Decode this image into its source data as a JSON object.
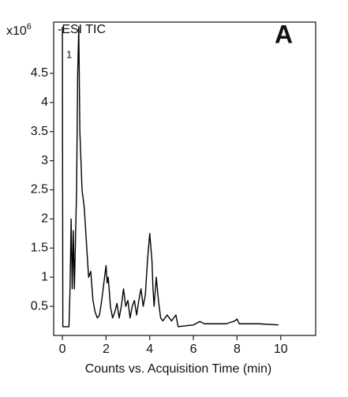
{
  "chart_data": {
    "type": "line",
    "x_label": "Counts vs. Acquisition Time (min)",
    "y_scale_label": {
      "base": "x10",
      "exponent": "6"
    },
    "annotations": [
      "-ESI TIC",
      "A",
      "1"
    ],
    "color": "#000000",
    "x": [
      0.0,
      0.02,
      0.3,
      0.35,
      0.4,
      0.45,
      0.5,
      0.55,
      0.65,
      0.7,
      0.75,
      0.8,
      0.9,
      1.0,
      1.1,
      1.2,
      1.3,
      1.4,
      1.5,
      1.6,
      1.7,
      1.8,
      1.9,
      2.0,
      2.05,
      2.1,
      2.2,
      2.3,
      2.4,
      2.5,
      2.6,
      2.7,
      2.8,
      2.9,
      3.0,
      3.1,
      3.2,
      3.3,
      3.4,
      3.5,
      3.6,
      3.7,
      3.8,
      3.9,
      4.0,
      4.1,
      4.15,
      4.2,
      4.3,
      4.4,
      4.5,
      4.6,
      4.8,
      5.0,
      5.2,
      5.3,
      6.0,
      6.3,
      6.5,
      7.5,
      7.9,
      8.0,
      8.1,
      9.0,
      9.9
    ],
    "values": [
      5.3,
      0.15,
      0.15,
      0.8,
      2.0,
      0.8,
      1.8,
      0.8,
      2.5,
      4.5,
      5.3,
      3.5,
      2.5,
      2.2,
      1.6,
      1.0,
      1.1,
      0.6,
      0.4,
      0.3,
      0.35,
      0.6,
      0.9,
      1.2,
      0.9,
      1.0,
      0.5,
      0.3,
      0.4,
      0.55,
      0.3,
      0.5,
      0.8,
      0.5,
      0.6,
      0.3,
      0.5,
      0.6,
      0.35,
      0.6,
      0.8,
      0.5,
      0.7,
      1.3,
      1.75,
      1.3,
      0.8,
      0.5,
      1.0,
      0.6,
      0.3,
      0.25,
      0.35,
      0.25,
      0.35,
      0.15,
      0.18,
      0.24,
      0.2,
      0.2,
      0.25,
      0.28,
      0.2,
      0.2,
      0.18
    ],
    "xlim": [
      -0.4,
      11.6
    ],
    "xticks": [
      0,
      2,
      4,
      6,
      8,
      10
    ],
    "ylim": [
      0,
      5.38
    ],
    "yticks": [
      0.5,
      1,
      1.5,
      2,
      2.5,
      3,
      3.5,
      4,
      4.5
    ],
    "grid": false
  }
}
